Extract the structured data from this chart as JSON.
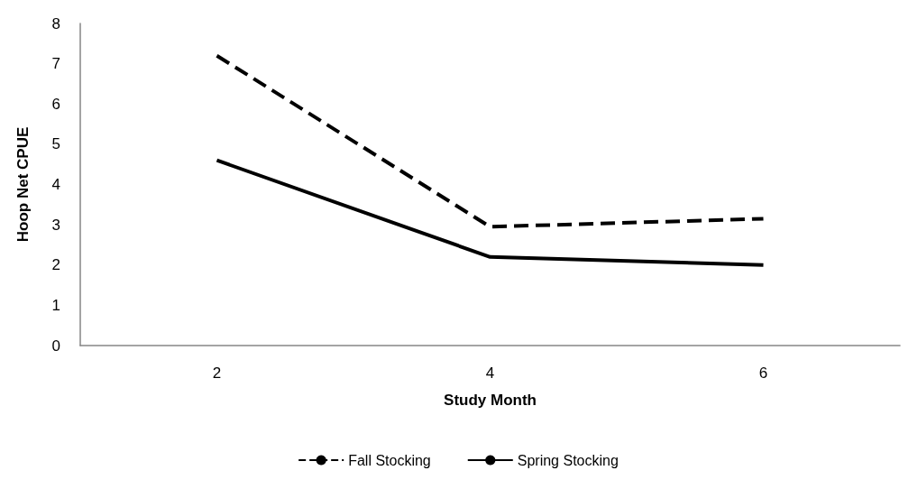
{
  "chart_data": {
    "type": "line",
    "xlabel": "Study Month",
    "ylabel": "Hoop Net CPUE",
    "categories": [
      "2",
      "4",
      "6"
    ],
    "series": [
      {
        "name": "Fall Stocking",
        "color": "#000000",
        "line_style": "dashed",
        "values": [
          7.2,
          2.95,
          3.15
        ]
      },
      {
        "name": "Spring Stocking",
        "color": "#000000",
        "line_style": "solid",
        "values": [
          4.6,
          2.2,
          2.0
        ]
      }
    ],
    "ylim": [
      0,
      8
    ],
    "yticks": [
      0,
      1,
      2,
      3,
      4,
      5,
      6,
      7,
      8
    ],
    "grid": false,
    "legend": "bottom",
    "marker": "none"
  }
}
